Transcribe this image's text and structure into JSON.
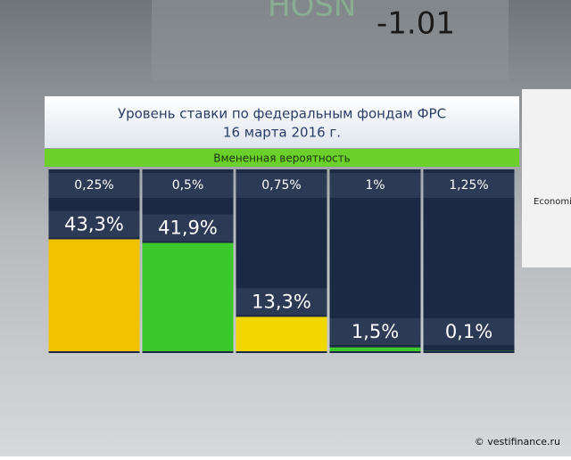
{
  "chart_data": {
    "type": "bar",
    "title": "Уровень ставки по федеральным фондам ФРС",
    "subtitle": "16 марта 2016 г.",
    "header": "Вмененная вероятность",
    "categories": [
      "0,25%",
      "0,5%",
      "0,75%",
      "1%",
      "1,25%"
    ],
    "values": [
      43.3,
      41.9,
      13.3,
      1.5,
      0.1
    ],
    "value_labels": [
      "43,3%",
      "41,9%",
      "13,3%",
      "1,5%",
      "0,1%"
    ],
    "colors": [
      "#f2c200",
      "#3cc82a",
      "#f2d600",
      "#3cc82a",
      "#3cc82a"
    ]
  },
  "background": {
    "ticker": "HOSN",
    "quote": "-1.01",
    "screen_text": "Economic",
    "credit": "© vestifinance.ru"
  }
}
